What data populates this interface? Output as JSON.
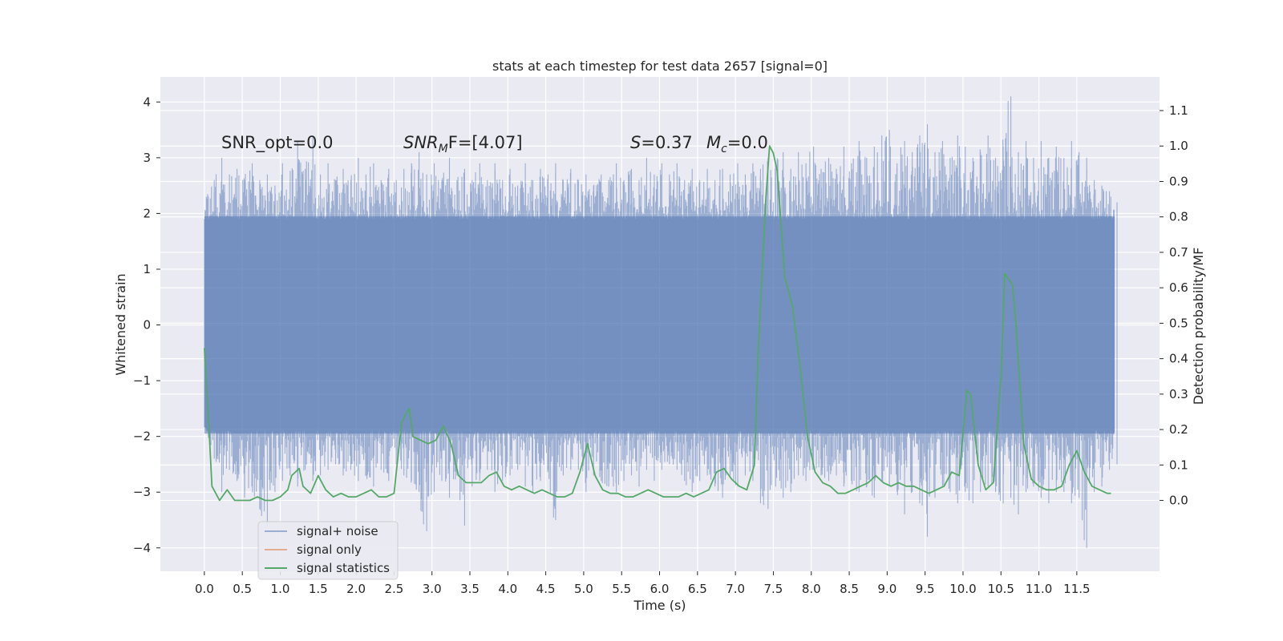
{
  "chart_data": {
    "type": "line",
    "title": "stats at each timestep for test data 2657 [signal=0]",
    "xlabel": "Time (s)",
    "ylabel_left": "Whitened strain",
    "ylabel_right": "Detection probability/MF",
    "xlim": [
      -0.58,
      12.59
    ],
    "ylim_left": [
      -4.42,
      4.45
    ],
    "ylim_right": [
      -0.2,
      1.195
    ],
    "x_ticks": [
      "0.0",
      "0.5",
      "1.0",
      "1.5",
      "2.0",
      "2.5",
      "3.0",
      "3.5",
      "4.0",
      "4.5",
      "5.0",
      "5.5",
      "6.0",
      "6.5",
      "7.0",
      "7.5",
      "8.0",
      "8.5",
      "9.0",
      "9.5",
      "10.0",
      "10.5",
      "11.0",
      "11.5"
    ],
    "y_ticks_left": [
      "4",
      "3",
      "2",
      "1",
      "0",
      "−1",
      "−2",
      "−3",
      "−4"
    ],
    "y_ticks_right": [
      "1.1",
      "1.0",
      "0.9",
      "0.8",
      "0.7",
      "0.6",
      "0.5",
      "0.4",
      "0.3",
      "0.2",
      "0.1",
      "0.0"
    ],
    "grid": true,
    "legend_location": "lower-left",
    "annotations": {
      "snr_opt": "SNR_opt=0.0",
      "snr_mf_main": "SNR",
      "snr_mf_sub": "M",
      "snr_mf_rest": "F=[4.07]",
      "s_main": "S",
      "s_rest": "=0.37",
      "mc_main": "M",
      "mc_sub": "c",
      "mc_rest": "=0.0"
    },
    "series": [
      {
        "name": "signal+ noise",
        "axis": "left",
        "color": "#4c72b0",
        "description_sample_span": [
          0.0,
          12.0
        ],
        "envelope_samples": {
          "time": [
            0.0,
            0.1,
            0.2,
            0.3,
            0.4,
            0.5,
            0.6,
            0.7,
            0.8,
            0.9,
            1.0,
            1.1,
            1.2,
            1.3,
            1.4,
            1.5,
            1.6,
            1.7,
            1.8,
            1.9,
            2.0,
            2.1,
            2.2,
            2.3,
            2.4,
            2.5,
            2.6,
            2.7,
            2.8,
            2.9,
            3.0,
            3.1,
            3.2,
            3.3,
            3.4,
            3.5,
            3.6,
            3.7,
            3.8,
            3.9,
            4.0,
            4.1,
            4.2,
            4.3,
            4.4,
            4.5,
            4.6,
            4.7,
            4.8,
            4.9,
            5.0,
            5.1,
            5.2,
            5.3,
            5.4,
            5.5,
            5.6,
            5.7,
            5.8,
            5.9,
            6.0,
            6.1,
            6.2,
            6.3,
            6.4,
            6.5,
            6.6,
            6.7,
            6.8,
            6.9,
            7.0,
            7.1,
            7.2,
            7.3,
            7.4,
            7.5,
            7.6,
            7.7,
            7.8,
            7.9,
            8.0,
            8.1,
            8.2,
            8.3,
            8.4,
            8.5,
            8.6,
            8.7,
            8.8,
            8.9,
            9.0,
            9.1,
            9.2,
            9.3,
            9.4,
            9.5,
            9.6,
            9.7,
            9.8,
            9.9,
            10.0,
            10.1,
            10.2,
            10.3,
            10.4,
            10.5,
            10.6,
            10.7,
            10.8,
            10.9,
            11.0,
            11.1,
            11.2,
            11.3,
            11.4,
            11.5,
            11.6,
            11.7,
            11.8,
            11.9,
            12.0
          ],
          "max": [
            2.2,
            2.6,
            3.0,
            2.7,
            2.8,
            2.6,
            2.9,
            2.6,
            2.7,
            2.5,
            2.9,
            2.6,
            3.3,
            2.8,
            3.4,
            2.7,
            2.9,
            2.6,
            2.8,
            2.6,
            3.0,
            2.7,
            2.9,
            2.6,
            2.8,
            2.6,
            2.8,
            2.9,
            3.1,
            2.7,
            2.9,
            2.6,
            3.0,
            2.6,
            2.8,
            2.6,
            2.9,
            2.6,
            2.9,
            2.6,
            2.8,
            2.5,
            2.9,
            2.6,
            2.8,
            2.7,
            2.9,
            2.6,
            2.8,
            2.6,
            2.7,
            2.5,
            2.7,
            2.6,
            2.9,
            2.6,
            2.8,
            2.6,
            3.0,
            2.7,
            2.9,
            2.7,
            2.9,
            2.6,
            2.8,
            2.6,
            2.8,
            2.6,
            2.8,
            2.7,
            2.9,
            2.7,
            2.9,
            2.8,
            3.0,
            2.9,
            3.1,
            2.8,
            3.1,
            2.9,
            3.2,
            2.8,
            3.0,
            2.8,
            3.2,
            2.9,
            3.3,
            3.0,
            3.2,
            3.4,
            3.5,
            2.9,
            3.3,
            3.1,
            3.4,
            3.6,
            3.1,
            3.3,
            3.0,
            3.4,
            3.2,
            3.0,
            3.1,
            3.4,
            3.0,
            3.2,
            4.1,
            3.1,
            3.3,
            3.0,
            3.3,
            3.0,
            3.2,
            3.0,
            3.3,
            3.1,
            3.0,
            2.6,
            2.5,
            2.4,
            2.2
          ],
          "min": [
            -1.7,
            -2.4,
            -3.0,
            -2.6,
            -2.8,
            -3.1,
            -2.9,
            -3.3,
            -3.6,
            -3.0,
            -2.8,
            -2.7,
            -2.9,
            -2.6,
            -2.8,
            -2.7,
            -2.6,
            -2.5,
            -2.7,
            -2.6,
            -2.8,
            -2.7,
            -2.9,
            -2.6,
            -2.8,
            -2.5,
            -2.7,
            -2.8,
            -3.0,
            -3.7,
            -3.0,
            -2.8,
            -3.1,
            -2.7,
            -3.6,
            -2.9,
            -2.8,
            -2.6,
            -3.0,
            -2.8,
            -2.7,
            -2.6,
            -2.9,
            -3.0,
            -2.8,
            -2.6,
            -3.5,
            -2.7,
            -2.6,
            -2.6,
            -3.0,
            -2.7,
            -2.8,
            -2.9,
            -3.0,
            -2.8,
            -2.7,
            -2.9,
            -2.6,
            -2.8,
            -2.6,
            -2.5,
            -2.6,
            -2.8,
            -3.0,
            -2.8,
            -2.7,
            -2.9,
            -3.1,
            -2.7,
            -2.9,
            -2.7,
            -2.8,
            -3.2,
            -3.3,
            -2.9,
            -3.1,
            -3.0,
            -2.7,
            -2.8,
            -2.6,
            -2.7,
            -2.8,
            -2.7,
            -2.9,
            -2.8,
            -3.0,
            -2.9,
            -3.1,
            -2.8,
            -2.9,
            -3.0,
            -3.4,
            -3.0,
            -3.2,
            -3.8,
            -3.1,
            -2.9,
            -3.0,
            -3.2,
            -3.0,
            -3.2,
            -3.0,
            -2.9,
            -3.0,
            -3.2,
            -3.1,
            -3.4,
            -3.0,
            -2.9,
            -3.1,
            -3.2,
            -3.0,
            -3.0,
            -3.2,
            -3.1,
            -4.0,
            -3.0,
            -2.9,
            -2.6,
            -2.5
          ]
        }
      },
      {
        "name": "signal only",
        "axis": "left",
        "color": "#dd8452",
        "values": []
      },
      {
        "name": "signal statistics",
        "axis": "right",
        "color": "#55a868",
        "x": [
          0.0,
          0.05,
          0.1,
          0.15,
          0.2,
          0.3,
          0.4,
          0.5,
          0.6,
          0.7,
          0.8,
          0.9,
          1.0,
          1.1,
          1.15,
          1.25,
          1.3,
          1.4,
          1.5,
          1.6,
          1.7,
          1.8,
          1.9,
          2.0,
          2.1,
          2.2,
          2.3,
          2.4,
          2.5,
          2.6,
          2.7,
          2.75,
          2.85,
          2.95,
          3.05,
          3.15,
          3.25,
          3.35,
          3.45,
          3.55,
          3.65,
          3.75,
          3.85,
          3.95,
          4.05,
          4.15,
          4.25,
          4.35,
          4.45,
          4.55,
          4.65,
          4.75,
          4.85,
          4.95,
          5.05,
          5.15,
          5.25,
          5.35,
          5.45,
          5.55,
          5.65,
          5.75,
          5.85,
          5.95,
          6.05,
          6.15,
          6.25,
          6.35,
          6.45,
          6.55,
          6.65,
          6.75,
          6.85,
          6.95,
          7.05,
          7.15,
          7.25,
          7.3,
          7.4,
          7.45,
          7.5,
          7.55,
          7.65,
          7.75,
          7.85,
          7.95,
          8.05,
          8.15,
          8.25,
          8.35,
          8.45,
          8.55,
          8.65,
          8.75,
          8.85,
          8.95,
          9.05,
          9.15,
          9.25,
          9.35,
          9.45,
          9.55,
          9.65,
          9.75,
          9.85,
          9.95,
          10.05,
          10.1,
          10.2,
          10.3,
          10.4,
          10.5,
          10.55,
          10.65,
          10.7,
          10.8,
          10.9,
          11.0,
          11.1,
          11.2,
          11.3,
          11.4,
          11.5,
          11.6,
          11.7,
          11.8,
          11.9,
          11.95
        ],
        "values": [
          0.43,
          0.25,
          0.04,
          0.02,
          0.0,
          0.03,
          0.0,
          0.0,
          0.0,
          0.01,
          0.0,
          0.0,
          0.01,
          0.03,
          0.07,
          0.09,
          0.04,
          0.02,
          0.07,
          0.03,
          0.01,
          0.02,
          0.01,
          0.01,
          0.02,
          0.03,
          0.01,
          0.01,
          0.02,
          0.22,
          0.26,
          0.18,
          0.17,
          0.16,
          0.17,
          0.21,
          0.16,
          0.07,
          0.05,
          0.05,
          0.05,
          0.07,
          0.08,
          0.04,
          0.03,
          0.04,
          0.03,
          0.02,
          0.03,
          0.02,
          0.01,
          0.01,
          0.02,
          0.08,
          0.16,
          0.07,
          0.03,
          0.02,
          0.02,
          0.01,
          0.01,
          0.02,
          0.03,
          0.02,
          0.01,
          0.01,
          0.01,
          0.02,
          0.01,
          0.02,
          0.03,
          0.08,
          0.09,
          0.06,
          0.04,
          0.03,
          0.1,
          0.42,
          0.85,
          1.0,
          0.98,
          0.93,
          0.63,
          0.55,
          0.38,
          0.18,
          0.08,
          0.05,
          0.04,
          0.02,
          0.02,
          0.03,
          0.04,
          0.05,
          0.07,
          0.05,
          0.04,
          0.05,
          0.04,
          0.04,
          0.03,
          0.02,
          0.03,
          0.04,
          0.08,
          0.07,
          0.31,
          0.3,
          0.1,
          0.03,
          0.05,
          0.35,
          0.64,
          0.61,
          0.49,
          0.16,
          0.06,
          0.04,
          0.03,
          0.03,
          0.04,
          0.1,
          0.14,
          0.08,
          0.04,
          0.03,
          0.02,
          0.02
        ]
      }
    ]
  }
}
